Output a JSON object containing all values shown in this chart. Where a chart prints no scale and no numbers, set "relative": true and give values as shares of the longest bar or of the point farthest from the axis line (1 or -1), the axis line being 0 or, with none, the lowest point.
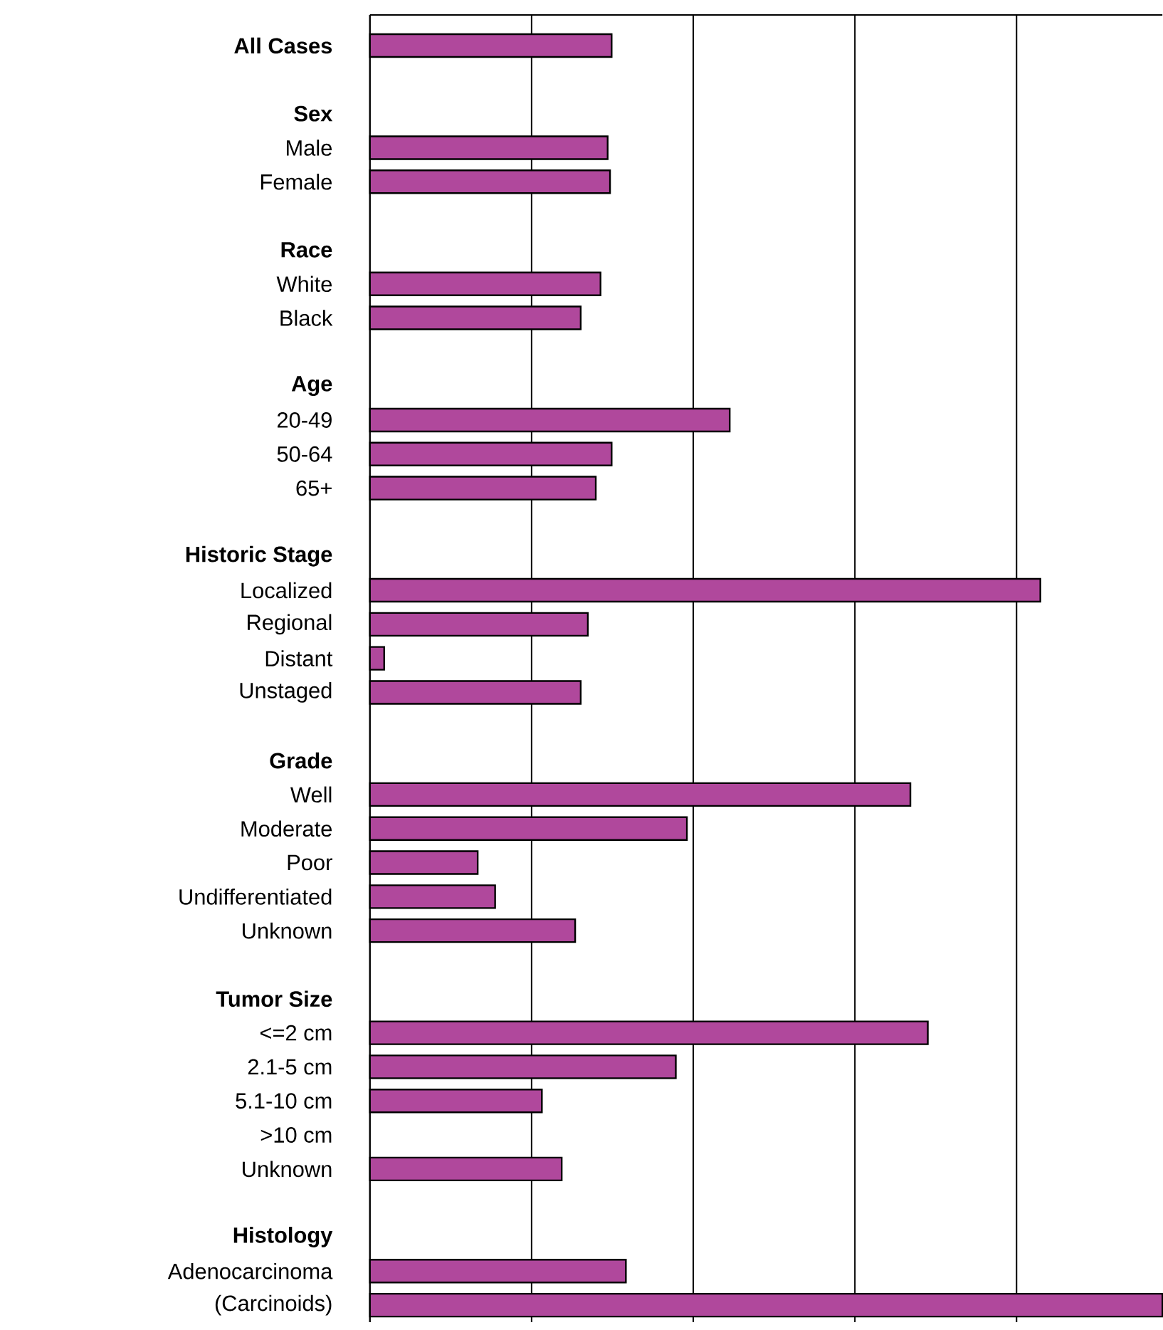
{
  "chart_data": {
    "type": "bar",
    "orientation": "horizontal",
    "relative": true,
    "grid": "x",
    "tick_labels": "y",
    "color": "#b0489c",
    "categories": [
      "**All Cases**",
      null,
      "**Sex**",
      "Male",
      "Female",
      null,
      "**Race**",
      "White",
      "Black",
      null,
      "**Age**",
      "20-49",
      "50-64",
      "65+",
      null,
      "**Historic Stage**",
      "Localized",
      "Regional",
      "Distant",
      "Unstaged",
      null,
      "**Grade**",
      "Well",
      "Moderate",
      "Poor",
      "Undifferentiated",
      "Unknown",
      null,
      "**Tumor Size**",
      "<=2 cm",
      "2.1-5 cm",
      "5.1-10 cm",
      ">10 cm",
      "Unknown",
      null,
      "**Histology**",
      "Adenocarcinoma",
      "(Carcinoids)"
    ],
    "values": [
      0.305,
      null,
      null,
      0.3,
      0.303,
      null,
      null,
      0.291,
      0.266,
      null,
      null,
      0.454,
      0.305,
      0.285,
      null,
      null,
      0.846,
      0.275,
      0.018,
      0.266,
      null,
      null,
      0.682,
      0.4,
      0.136,
      0.158,
      0.259,
      null,
      null,
      0.704,
      0.386,
      0.217,
      null,
      0.242,
      null,
      null,
      0.323,
      1
    ]
  }
}
